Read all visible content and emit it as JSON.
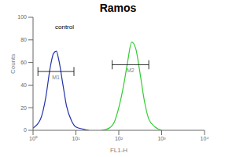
{
  "chart_data": {
    "type": "line",
    "title": "Ramos",
    "x_label": "FL1-H",
    "y_label": "Counts",
    "log": "x",
    "xlim": [
      1,
      10000
    ],
    "xticks": [
      {
        "value": 1,
        "label": "10⁰"
      },
      {
        "value": 10,
        "label": "10¹"
      },
      {
        "value": 100,
        "label": "10²"
      },
      {
        "value": 1000,
        "label": "10³"
      },
      {
        "value": 10000,
        "label": "10⁴"
      }
    ],
    "ylim": [
      0,
      100
    ],
    "yticks": [
      0,
      20,
      40,
      60,
      80,
      100
    ],
    "annotations": [
      {
        "text": "control"
      }
    ],
    "gates": [
      {
        "label": "M1",
        "x": [
          1.3,
          9
        ],
        "y": 52
      },
      {
        "label": "M2",
        "x": [
          70,
          500
        ],
        "y": 58
      }
    ],
    "series": [
      {
        "name": "control",
        "color": "#2233aa",
        "x": [
          1,
          1.5,
          2,
          2.5,
          3,
          3.5,
          4,
          5,
          6,
          8,
          10,
          15,
          20
        ],
        "values": [
          2,
          10,
          30,
          55,
          68,
          70,
          62,
          40,
          22,
          8,
          3,
          1,
          0
        ]
      },
      {
        "name": "Ramos",
        "color": "#33cc33",
        "x": [
          40,
          60,
          80,
          100,
          130,
          160,
          200,
          250,
          300,
          400,
          500,
          700,
          1000
        ],
        "values": [
          0,
          2,
          8,
          20,
          40,
          60,
          78,
          72,
          55,
          25,
          10,
          3,
          0
        ]
      }
    ]
  }
}
